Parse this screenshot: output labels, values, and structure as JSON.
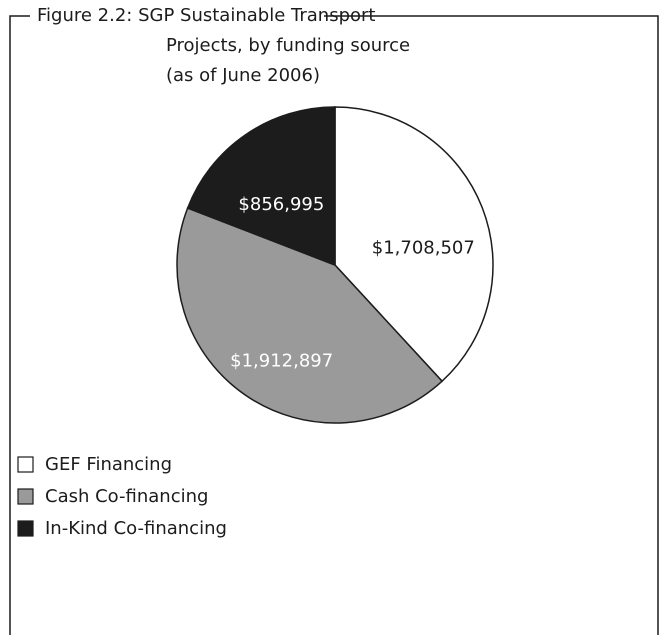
{
  "chart_data": {
    "type": "pie",
    "title": [
      "Figure 2.2: SGP Sustainable Transport",
      "Projects, by funding source",
      "(as of June 2006)"
    ],
    "categories": [
      "GEF Financing",
      "Cash Co-financing",
      "In-Kind Co-financing"
    ],
    "values": [
      1708507,
      1912897,
      856995
    ],
    "value_labels": [
      "$1,708,507",
      "$1,912,897",
      "$856,995"
    ],
    "colors": [
      "#ffffff",
      "#9a9a9a",
      "#1c1c1c"
    ],
    "legend": "bottom-left"
  }
}
